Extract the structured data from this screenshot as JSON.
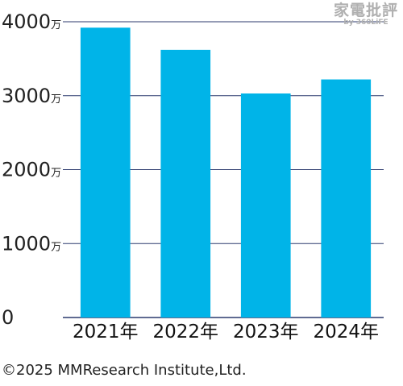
{
  "chart_data": {
    "type": "bar",
    "categories": [
      "2021年",
      "2022年",
      "2023年",
      "2024年"
    ],
    "values": [
      3920,
      3620,
      3030,
      3220
    ],
    "y_ticks": [
      {
        "value": 0,
        "label": "0",
        "unit": ""
      },
      {
        "value": 1000,
        "label": "1000",
        "unit": "万"
      },
      {
        "value": 2000,
        "label": "2000",
        "unit": "万"
      },
      {
        "value": 3000,
        "label": "3000",
        "unit": "万"
      },
      {
        "value": 4000,
        "label": "4000",
        "unit": "万"
      }
    ],
    "ylim": [
      0,
      4000
    ],
    "grid": true,
    "bar_color": "#00b4e8",
    "grid_color": "#2c3a6e"
  },
  "watermark": {
    "main": "家電批評",
    "sub": "by 360LiFE"
  },
  "copyright": "©2025 MMResearch Institute,Ltd."
}
